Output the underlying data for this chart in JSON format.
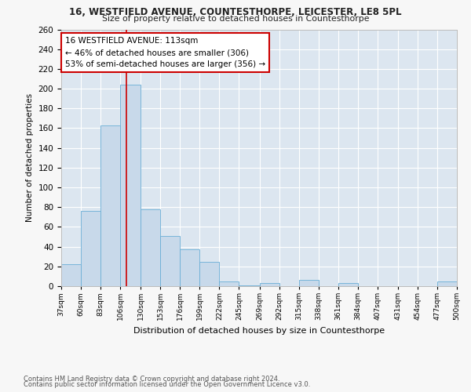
{
  "title1": "16, WESTFIELD AVENUE, COUNTESTHORPE, LEICESTER, LE8 5PL",
  "title2": "Size of property relative to detached houses in Countesthorpe",
  "xlabel": "Distribution of detached houses by size in Countesthorpe",
  "ylabel": "Number of detached properties",
  "bin_labels": [
    "37sqm",
    "60sqm",
    "83sqm",
    "106sqm",
    "130sqm",
    "153sqm",
    "176sqm",
    "199sqm",
    "222sqm",
    "245sqm",
    "269sqm",
    "292sqm",
    "315sqm",
    "338sqm",
    "361sqm",
    "384sqm",
    "407sqm",
    "431sqm",
    "454sqm",
    "477sqm",
    "500sqm"
  ],
  "bin_edges": [
    37,
    60,
    83,
    106,
    130,
    153,
    176,
    199,
    222,
    245,
    269,
    292,
    315,
    338,
    361,
    384,
    407,
    431,
    454,
    477,
    500
  ],
  "bar_heights": [
    22,
    76,
    163,
    204,
    78,
    51,
    37,
    25,
    5,
    1,
    3,
    0,
    6,
    0,
    3,
    0,
    0,
    0,
    0,
    5
  ],
  "bar_color": "#c8d9ea",
  "bar_edge_color": "#6aaed6",
  "vline_x": 113,
  "vline_color": "#cc0000",
  "annotation_title": "16 WESTFIELD AVENUE: 113sqm",
  "annotation_line1": "← 46% of detached houses are smaller (306)",
  "annotation_line2": "53% of semi-detached houses are larger (356) →",
  "annotation_box_color": "white",
  "annotation_box_edge": "#cc0000",
  "ylim": [
    0,
    260
  ],
  "yticks": [
    0,
    20,
    40,
    60,
    80,
    100,
    120,
    140,
    160,
    180,
    200,
    220,
    240,
    260
  ],
  "footer1": "Contains HM Land Registry data © Crown copyright and database right 2024.",
  "footer2": "Contains public sector information licensed under the Open Government Licence v3.0.",
  "bg_color": "#f7f7f7",
  "plot_bg_color": "#dce6f0"
}
